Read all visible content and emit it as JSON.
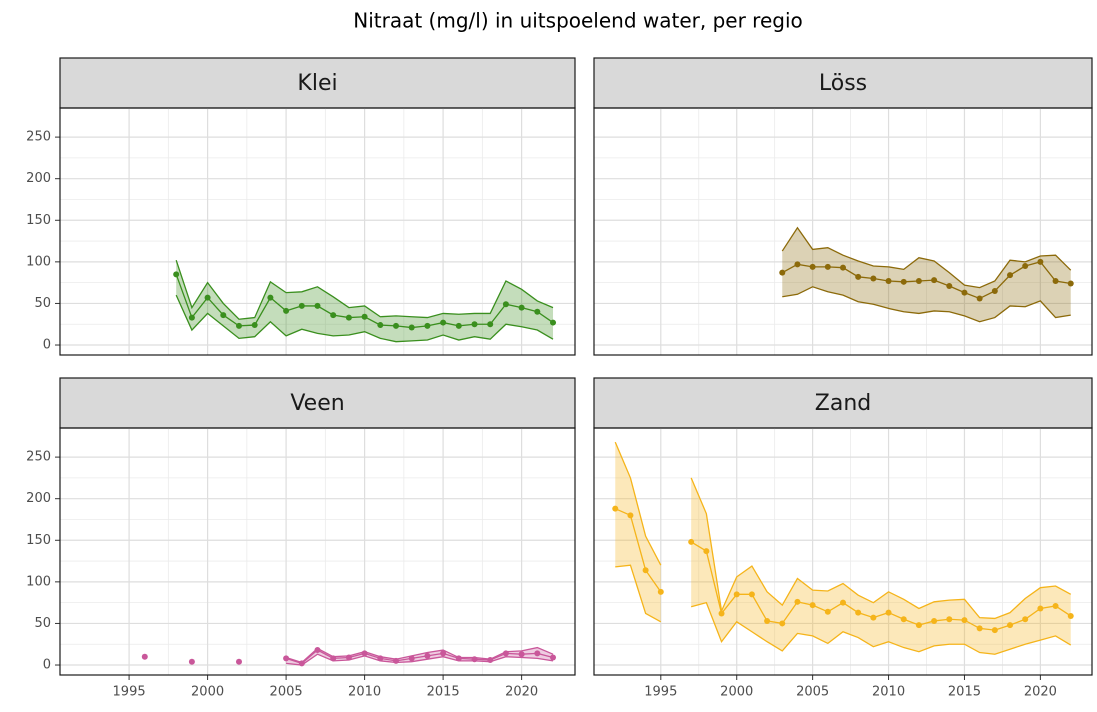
{
  "title": "Nitraat (mg/l) in uitspoelend water, per regio",
  "chart_data": [
    {
      "type": "line",
      "title": "Klei",
      "x": [
        1998,
        1999,
        2000,
        2001,
        2002,
        2003,
        2004,
        2005,
        2006,
        2007,
        2008,
        2009,
        2010,
        2011,
        2012,
        2013,
        2014,
        2015,
        2016,
        2017,
        2018,
        2019,
        2020,
        2021,
        2022
      ],
      "series": [
        {
          "color": "#3a8f1e",
          "values": [
            85,
            33,
            57,
            36,
            23,
            24,
            57,
            41,
            47,
            47,
            36,
            33,
            34,
            24,
            23,
            21,
            23,
            27,
            23,
            25,
            25,
            49,
            45,
            40,
            27
          ],
          "upper": [
            102,
            45,
            75,
            50,
            31,
            33,
            76,
            63,
            64,
            70,
            58,
            45,
            47,
            34,
            35,
            34,
            33,
            38,
            37,
            38,
            38,
            77,
            67,
            53,
            45
          ],
          "lower": [
            60,
            18,
            38,
            23,
            8,
            10,
            28,
            11,
            19,
            14,
            11,
            12,
            16,
            8,
            4,
            5,
            6,
            12,
            6,
            10,
            7,
            25,
            22,
            18,
            7
          ]
        }
      ],
      "xlim": [
        1990.6,
        2023.4
      ],
      "xticks": [
        1995,
        2000,
        2005,
        2010,
        2015,
        2020
      ],
      "ylim": [
        -12,
        285
      ],
      "yticks": [
        0,
        50,
        100,
        150,
        200,
        250
      ],
      "grid": true
    },
    {
      "type": "line",
      "title": "Löss",
      "x": [
        2003,
        2004,
        2005,
        2006,
        2007,
        2008,
        2009,
        2010,
        2011,
        2012,
        2013,
        2014,
        2015,
        2016,
        2017,
        2018,
        2019,
        2020,
        2021,
        2022
      ],
      "series": [
        {
          "color": "#8c6a0a",
          "values": [
            87,
            97,
            94,
            94,
            93,
            82,
            80,
            77,
            76,
            77,
            78,
            71,
            63,
            56,
            65,
            84,
            95,
            100,
            77,
            74
          ],
          "upper": [
            113,
            141,
            115,
            117,
            108,
            101,
            95,
            94,
            91,
            105,
            101,
            87,
            72,
            69,
            77,
            102,
            100,
            107,
            108,
            90
          ],
          "lower": [
            58,
            61,
            70,
            64,
            60,
            52,
            49,
            44,
            40,
            38,
            41,
            40,
            35,
            28,
            33,
            47,
            46,
            53,
            33,
            36
          ]
        }
      ],
      "xlim": [
        1990.6,
        2023.4
      ],
      "xticks": [
        1995,
        2000,
        2005,
        2010,
        2015,
        2020
      ],
      "ylim": [
        -12,
        285
      ],
      "yticks": [
        0,
        50,
        100,
        150,
        200,
        250
      ],
      "grid": true
    },
    {
      "type": "line",
      "title": "Veen",
      "x": [
        1996,
        1997,
        1998,
        1999,
        2000,
        2001,
        2002,
        2003,
        2004,
        2005,
        2006,
        2007,
        2008,
        2009,
        2010,
        2011,
        2012,
        2013,
        2014,
        2015,
        2016,
        2017,
        2018,
        2019,
        2020,
        2021,
        2022
      ],
      "series": [
        {
          "color": "#c9579a",
          "values": [
            10,
            null,
            null,
            4,
            null,
            null,
            4,
            null,
            null,
            8,
            2,
            18,
            8,
            9,
            14,
            8,
            5,
            8,
            11,
            14,
            8,
            7,
            6,
            14,
            13,
            14,
            9
          ],
          "upper": [
            null,
            null,
            null,
            null,
            null,
            null,
            null,
            null,
            null,
            9,
            3,
            20,
            10,
            11,
            16,
            10,
            7,
            11,
            15,
            18,
            9,
            9,
            7,
            16,
            17,
            21,
            13
          ],
          "lower": [
            null,
            null,
            null,
            null,
            null,
            null,
            null,
            null,
            null,
            2,
            0,
            13,
            5,
            6,
            11,
            5,
            3,
            4,
            7,
            10,
            5,
            5,
            4,
            10,
            9,
            8,
            5
          ]
        }
      ],
      "xlim": [
        1990.6,
        2023.4
      ],
      "xticks": [
        1995,
        2000,
        2005,
        2010,
        2015,
        2020
      ],
      "ylim": [
        -12,
        285
      ],
      "yticks": [
        0,
        50,
        100,
        150,
        200,
        250
      ],
      "grid": true
    },
    {
      "type": "line",
      "title": "Zand",
      "x": [
        1992,
        1993,
        1994,
        1995,
        1996,
        1997,
        1998,
        1999,
        2000,
        2001,
        2002,
        2003,
        2004,
        2005,
        2006,
        2007,
        2008,
        2009,
        2010,
        2011,
        2012,
        2013,
        2014,
        2015,
        2016,
        2017,
        2018,
        2019,
        2020,
        2021,
        2022
      ],
      "series": [
        {
          "color": "#f5b41a",
          "values": [
            188,
            180,
            114,
            88,
            null,
            148,
            137,
            62,
            85,
            85,
            53,
            50,
            76,
            72,
            64,
            75,
            63,
            57,
            63,
            55,
            48,
            53,
            55,
            54,
            44,
            42,
            48,
            55,
            68,
            71,
            59
          ],
          "upper": [
            268,
            225,
            155,
            120,
            null,
            225,
            182,
            65,
            106,
            119,
            88,
            72,
            104,
            90,
            89,
            98,
            84,
            75,
            88,
            79,
            68,
            76,
            78,
            79,
            57,
            56,
            63,
            80,
            93,
            95,
            85
          ],
          "lower": [
            118,
            120,
            62,
            52,
            null,
            70,
            75,
            28,
            52,
            40,
            28,
            17,
            38,
            35,
            26,
            40,
            33,
            22,
            28,
            21,
            16,
            23,
            25,
            25,
            15,
            13,
            19,
            25,
            30,
            35,
            24
          ]
        }
      ],
      "xlim": [
        1990.6,
        2023.4
      ],
      "xticks": [
        1995,
        2000,
        2005,
        2010,
        2015,
        2020
      ],
      "ylim": [
        -12,
        285
      ],
      "yticks": [
        0,
        50,
        100,
        150,
        200,
        250
      ],
      "grid": true
    }
  ]
}
